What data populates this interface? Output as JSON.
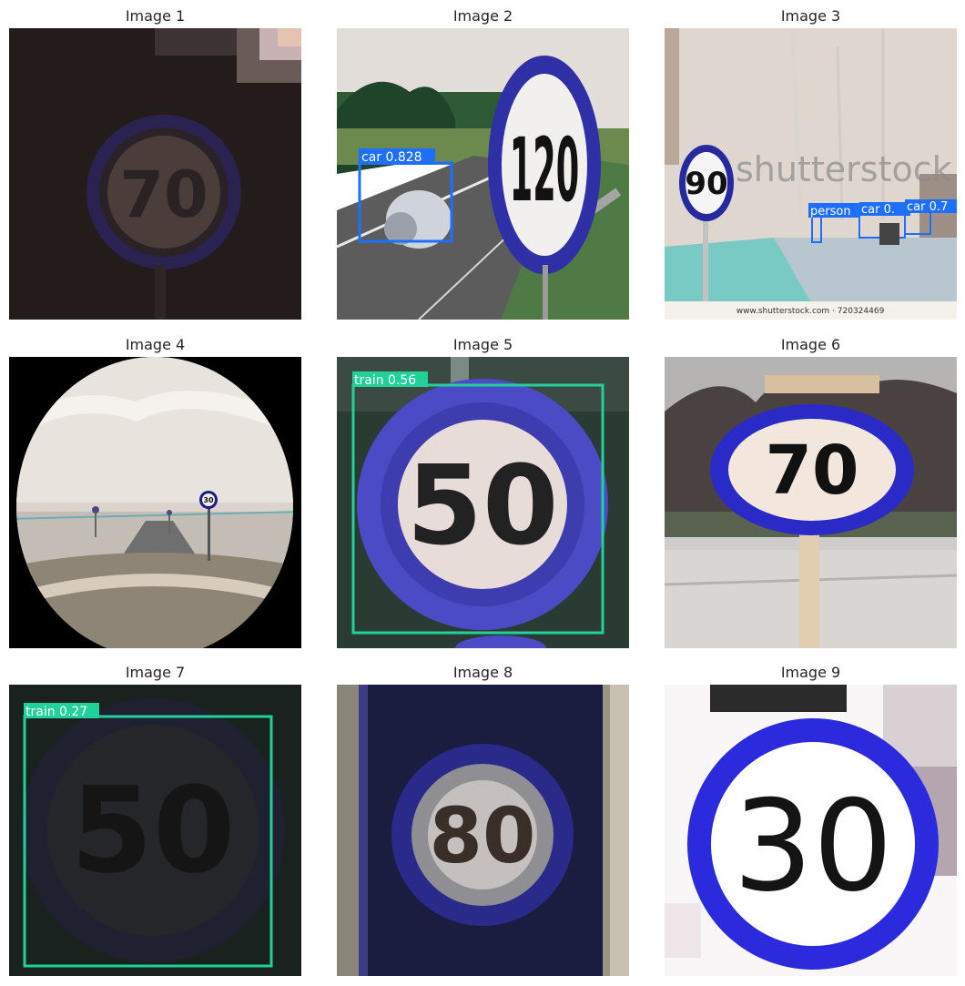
{
  "panels": [
    {
      "title": "Image 1",
      "sign": "70",
      "detections": []
    },
    {
      "title": "Image 2",
      "sign": "120",
      "detections": [
        {
          "label": "car 0.828",
          "color": "#1f6fff"
        }
      ]
    },
    {
      "title": "Image 3",
      "sign": "90",
      "watermark": "shutterstock",
      "caption": "www.shutterstock.com · 720324469",
      "detections": [
        {
          "label": "person",
          "color": "#1f6fff"
        },
        {
          "label": "car 0.",
          "color": "#1f6fff"
        },
        {
          "label": "car 0.7",
          "color": "#1f6fff"
        }
      ]
    },
    {
      "title": "Image 4",
      "sign": "30",
      "detections": []
    },
    {
      "title": "Image 5",
      "sign": "50",
      "detections": [
        {
          "label": "train 0.56",
          "color": "#22d19a"
        }
      ]
    },
    {
      "title": "Image 6",
      "sign": "70",
      "detections": []
    },
    {
      "title": "Image 7",
      "sign": "50",
      "detections": [
        {
          "label": "train 0.27",
          "color": "#22d19a"
        }
      ]
    },
    {
      "title": "Image 8",
      "sign": "80",
      "detections": []
    },
    {
      "title": "Image 9",
      "sign": "30",
      "detections": []
    }
  ],
  "colors": {
    "sign_blue": "#3a3ad0",
    "det_blue": "#1f6fff",
    "det_green": "#22d19a"
  }
}
